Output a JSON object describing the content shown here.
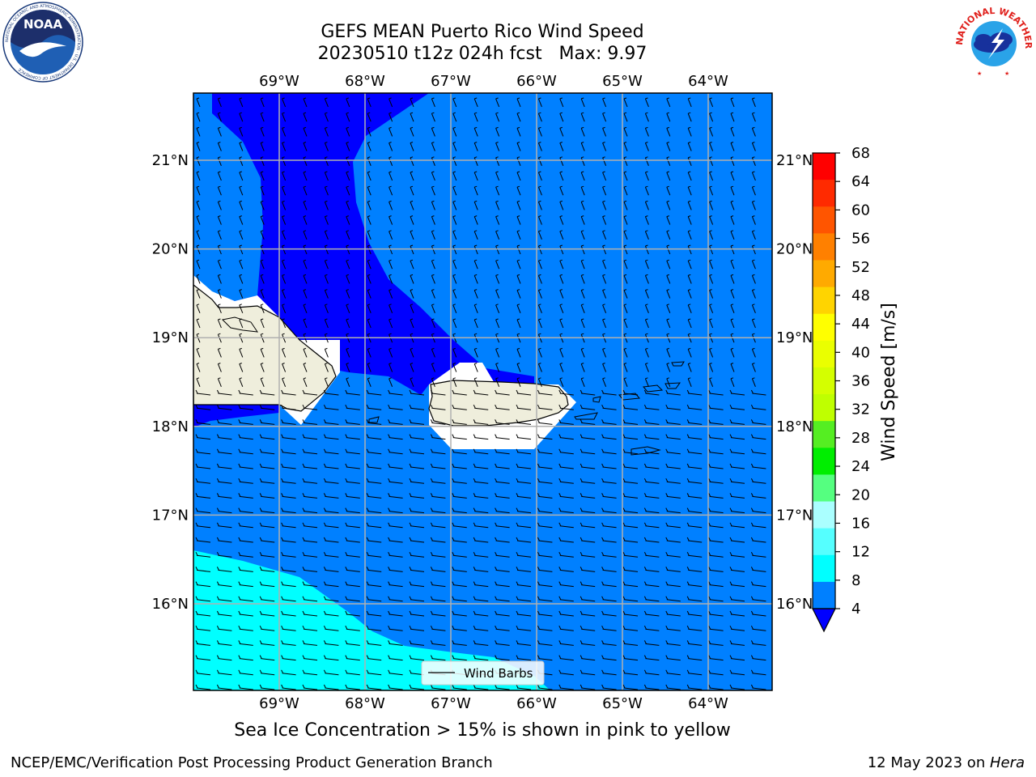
{
  "header": {
    "title_line1": "GEFS MEAN Puerto Rico Wind Speed",
    "title_line2": "20230510 t12z 024h fcst   Max: 9.97"
  },
  "logos": {
    "left": {
      "text": "NOAA",
      "ring_text": "NATIONAL OCEANIC AND ATMOSPHERIC ADMINISTRATION · U.S. DEPARTMENT OF COMMERCE",
      "icon": "noaa-logo"
    },
    "right": {
      "ring_text": "NATIONAL WEATHER SERVICE",
      "icon": "nws-logo"
    }
  },
  "map": {
    "lon_labels": [
      "69°W",
      "68°W",
      "67°W",
      "66°W",
      "65°W",
      "64°W"
    ],
    "lat_labels": [
      "21°N",
      "20°N",
      "19°N",
      "18°N",
      "17°N",
      "16°N"
    ],
    "legend_label": "Wind Barbs",
    "colors": {
      "band_4_8": "#0080ff",
      "band_8_12": "#00ffff",
      "below_4": "#0000ff",
      "land": "#efeedc",
      "grid": "#b0b0b0"
    }
  },
  "colorbar": {
    "label": "Wind Speed [m/s]",
    "ticks": [
      "68",
      "64",
      "60",
      "56",
      "52",
      "48",
      "44",
      "40",
      "36",
      "32",
      "28",
      "24",
      "20",
      "16",
      "12",
      "8",
      "4"
    ],
    "colors_top_to_bottom": [
      "#ff0000",
      "#ff2a00",
      "#ff5500",
      "#ff8000",
      "#ffaa00",
      "#ffd400",
      "#ffff00",
      "#eaff00",
      "#d4ff00",
      "#bfff00",
      "#55ee22",
      "#00ee00",
      "#55ff80",
      "#aaffff",
      "#55ffff",
      "#00ffff",
      "#0080ff"
    ],
    "extend_color": "#0000ff"
  },
  "caption": "Sea Ice Concentration > 15% is shown in pink to yellow",
  "footer": {
    "left": "NCEP/EMC/Verification Post Processing Product Generation Branch",
    "right_date": "12 May 2023 on ",
    "right_host": "Hera"
  }
}
